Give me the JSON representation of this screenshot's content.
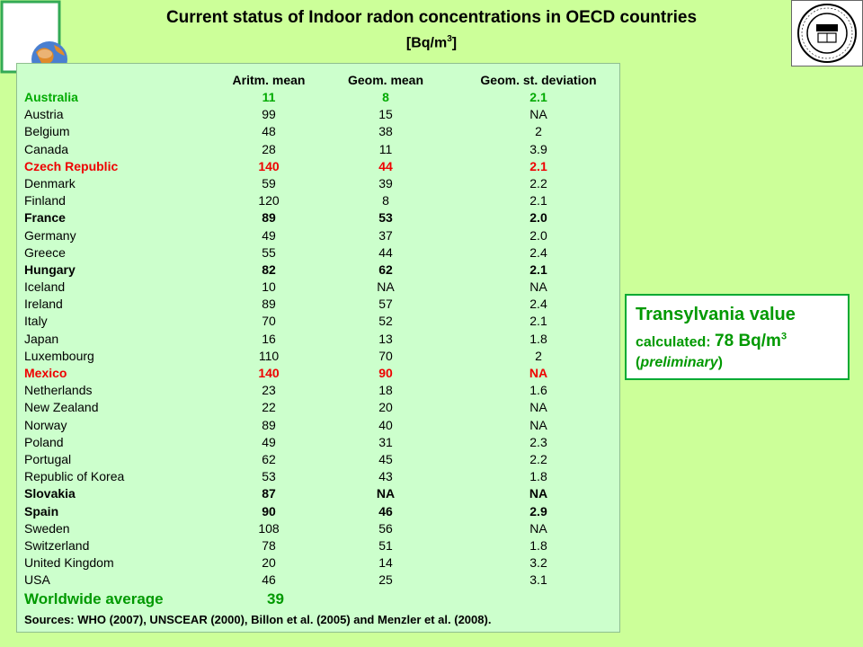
{
  "title": "Current status of Indoor radon concentrations in OECD countries",
  "subtitle_prefix": "[Bq/m",
  "subtitle_sup": "3",
  "subtitle_suffix": "]",
  "headers": [
    "Aritm. mean",
    "Geom. mean",
    "Geom. st. deviation"
  ],
  "rows": [
    {
      "country": "Australia",
      "aritm": "11",
      "geom": "8",
      "std": "2.1",
      "style": "green"
    },
    {
      "country": "Austria",
      "aritm": "99",
      "geom": "15",
      "std": "NA",
      "style": ""
    },
    {
      "country": "Belgium",
      "aritm": "48",
      "geom": "38",
      "std": "2",
      "style": ""
    },
    {
      "country": "Canada",
      "aritm": "28",
      "geom": "11",
      "std": "3.9",
      "style": ""
    },
    {
      "country": "Czech Republic",
      "aritm": "140",
      "geom": "44",
      "std": "2.1",
      "style": "red"
    },
    {
      "country": "Denmark",
      "aritm": "59",
      "geom": "39",
      "std": "2.2",
      "style": ""
    },
    {
      "country": "Finland",
      "aritm": "120",
      "geom": "8",
      "std": "2.1",
      "style": ""
    },
    {
      "country": "France",
      "aritm": "89",
      "geom": "53",
      "std": "2.0",
      "style": "bold"
    },
    {
      "country": "Germany",
      "aritm": "49",
      "geom": "37",
      "std": "2.0",
      "style": ""
    },
    {
      "country": "Greece",
      "aritm": "55",
      "geom": "44",
      "std": "2.4",
      "style": ""
    },
    {
      "country": "Hungary",
      "aritm": "82",
      "geom": "62",
      "std": "2.1",
      "style": "bold"
    },
    {
      "country": "Iceland",
      "aritm": "10",
      "geom": "NA",
      "std": "NA",
      "style": ""
    },
    {
      "country": "Ireland",
      "aritm": "89",
      "geom": "57",
      "std": "2.4",
      "style": ""
    },
    {
      "country": "Italy",
      "aritm": "70",
      "geom": "52",
      "std": "2.1",
      "style": ""
    },
    {
      "country": "Japan",
      "aritm": "16",
      "geom": "13",
      "std": "1.8",
      "style": ""
    },
    {
      "country": "Luxembourg",
      "aritm": "110",
      "geom": "70",
      "std": "2",
      "style": ""
    },
    {
      "country": "Mexico",
      "aritm": "140",
      "geom": "90",
      "std": "NA",
      "style": "red"
    },
    {
      "country": "Netherlands",
      "aritm": "23",
      "geom": "18",
      "std": "1.6",
      "style": ""
    },
    {
      "country": "New Zealand",
      "aritm": "22",
      "geom": "20",
      "std": "NA",
      "style": ""
    },
    {
      "country": "Norway",
      "aritm": "89",
      "geom": "40",
      "std": "NA",
      "style": ""
    },
    {
      "country": "Poland",
      "aritm": "49",
      "geom": "31",
      "std": "2.3",
      "style": ""
    },
    {
      "country": "Portugal",
      "aritm": "62",
      "geom": "45",
      "std": "2.2",
      "style": ""
    },
    {
      "country": "Republic of Korea",
      "aritm": "53",
      "geom": "43",
      "std": "1.8",
      "style": ""
    },
    {
      "country": "Slovakia",
      "aritm": "87",
      "geom": "NA",
      "std": "NA",
      "style": "bold"
    },
    {
      "country": "Spain",
      "aritm": "90",
      "geom": "46",
      "std": "2.9",
      "style": "bold"
    },
    {
      "country": "Sweden",
      "aritm": "108",
      "geom": "56",
      "std": "NA",
      "style": ""
    },
    {
      "country": "Switzerland",
      "aritm": "78",
      "geom": "51",
      "std": "1.8",
      "style": ""
    },
    {
      "country": "United Kingdom",
      "aritm": "20",
      "geom": "14",
      "std": "3.2",
      "style": ""
    },
    {
      "country": "USA",
      "aritm": "46",
      "geom": "25",
      "std": "3.1",
      "style": ""
    }
  ],
  "worldwide": {
    "label": "Worldwide average",
    "value": "39"
  },
  "sources": "Sources: WHO (2007), UNSCEAR (2000), Billon et al. (2005) and Menzler et al. (2008).",
  "callout": {
    "line1": "Transylvania value",
    "line2_prefix": "calculated: ",
    "value": "78 Bq/m",
    "value_sup": "3",
    "line3_open": "(",
    "line3_italic": "preliminary",
    "line3_close": ")"
  },
  "colors": {
    "background": "#ccff99",
    "panel": "#ccffcc",
    "green": "#00aa00",
    "red": "#ee0000"
  },
  "icons": [
    "globe-logo-icon",
    "university-seal-icon"
  ]
}
